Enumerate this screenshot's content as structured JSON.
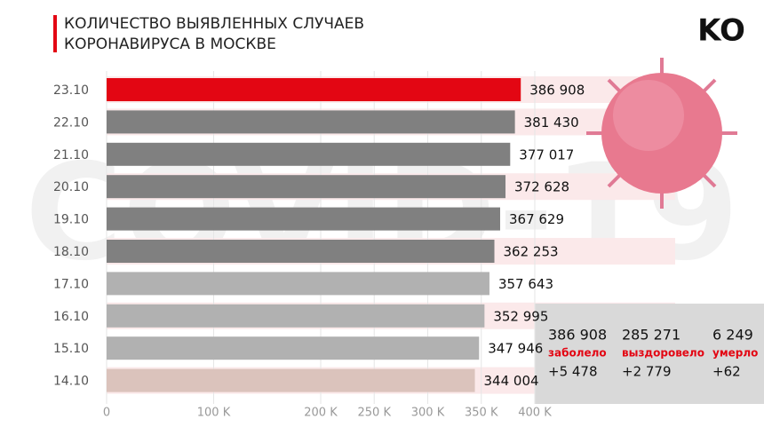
{
  "chart_data": {
    "type": "bar",
    "orientation": "horizontal",
    "title": [
      "КОЛИЧЕСТВО ВЫЯВЛЕННЫХ СЛУЧАЕВ",
      "КОРОНАВИРУСА В МОСКВЕ"
    ],
    "logo": "KO",
    "watermark": "COVID-19",
    "categories": [
      "23.10",
      "22.10",
      "21.10",
      "20.10",
      "19.10",
      "18.10",
      "17.10",
      "16.10",
      "15.10",
      "14.10"
    ],
    "values": [
      386908,
      381430,
      377017,
      372628,
      367629,
      362253,
      357643,
      352995,
      347946,
      344004
    ],
    "value_labels": [
      "386 908",
      "381 430",
      "377 017",
      "372 628",
      "367 629",
      "362 253",
      "357 643",
      "352 995",
      "347 946",
      "344 004"
    ],
    "colors": [
      "#e30613",
      "#808080",
      "#808080",
      "#808080",
      "#808080",
      "#808080",
      "#b1b1b1",
      "#b1b1b1",
      "#b1b1b1",
      "#dbc3bc"
    ],
    "xlim": [
      0,
      400000
    ],
    "xticks": [
      0,
      {
        "value": 100000,
        "label": "100 K"
      },
      {
        "value": 200000,
        "label": "200 K"
      },
      {
        "value": 250000,
        "label": "250 K"
      },
      {
        "value": 300000,
        "label": "300 K"
      },
      {
        "value": 350000,
        "label": "350 K"
      },
      {
        "value": 400000,
        "label": "400 K"
      }
    ],
    "stats": [
      {
        "value": "386 908",
        "label": "заболело",
        "change": "+5 478"
      },
      {
        "value": "285 271",
        "label": "выздоровело",
        "change": "+2 779"
      },
      {
        "value": "6 249",
        "label": "умерло",
        "change": "+62"
      }
    ]
  }
}
